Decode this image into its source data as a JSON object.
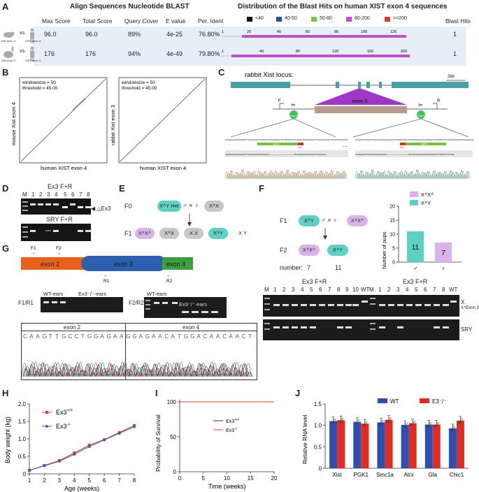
{
  "panels": {
    "A": "A",
    "B": "B",
    "C": "C",
    "D": "D",
    "E": "E",
    "F": "F",
    "G": "G",
    "H": "H",
    "I": "I",
    "J": "J"
  },
  "panelA": {
    "left_title": "Align Sequences Nucleotide BLAST",
    "right_title": "Distribution of the Blast Hits on human XIST exon 4 sequences",
    "columns": [
      "Max Score",
      "Total Score",
      "Query Cover",
      "E value",
      "Per. Ident"
    ],
    "blast_hits_label": "Blast Hits",
    "legend": [
      {
        "label": "<40",
        "color": "#111111"
      },
      {
        "label": "40-50",
        "color": "#2a4fa0"
      },
      {
        "label": "50-80",
        "color": "#7dc242"
      },
      {
        "label": "80-200",
        "color": "#c052c9"
      },
      {
        "label": ">=200",
        "color": "#e03a2f"
      }
    ],
    "rows": [
      {
        "vs": "vs.",
        "left_label": "Xist exon 4",
        "right_label": "XIST exon 4",
        "max": "96.0",
        "total": "96.0",
        "cover": "89%",
        "evalue": "4e-25",
        "ident": "76.80%",
        "hits": "1",
        "ticks": [
          "1",
          "20",
          "40",
          "60",
          "80",
          "100",
          "120"
        ]
      },
      {
        "vs": "vs.",
        "left_label": "Xist exon 3",
        "right_label": "XIST exon 4",
        "max": "176",
        "total": "176",
        "cover": "94%",
        "evalue": "4e-49",
        "ident": "79.80%",
        "hits": "1",
        "ticks": [
          "1",
          "40",
          "80",
          "120",
          "160",
          "200"
        ]
      }
    ]
  },
  "panelB": {
    "plot1": {
      "info1": "windowsize = 50",
      "info2": "threshold = 45.00",
      "ylabel": "mouse Xist exon 4",
      "xlabel": "human XIST exon 4"
    },
    "plot2": {
      "info1": "windowsize = 50",
      "info2": "threshold = 45.00",
      "ylabel": "rabbit Xist exon 3",
      "xlabel": "human XIST exon 4"
    }
  },
  "panelC": {
    "title": "rabbit Xist locus:",
    "scale": "2kb",
    "exon": "exon 3",
    "cas9": "Cas 9",
    "F": "F",
    "R": "R",
    "sgRNA": "sgRNA",
    "pam": "PAM",
    "ellipsis": "...",
    "seq_left": "GGGGGGAAAAAGAAGTTTGGAGATCGCCAGACTTGGAGGACTGTTAGGTGTTTTAAAGCAAAAAAAAATTTTCCAGGGAACTTGAATTTGGAACC",
    "seq_right": "TGGGACTCTTGCTTGGCAAAAGGAGAGCTTTCCTAGTAAGTCTAGTAGGAGCAAATTAGCTTCTTATGTTTTTTGGAGGAGACCTAAATAAGG",
    "seq_left_mut": "GGGGGGAAAAAGAAGTTTGGAGATCGCCAGACT----------------------------------------TTCCAGGGAACTTGAATTTGGAACC",
    "seq_right_mut": "TGGGACTCTTGCTTGGCAAAAGGA----------------------------------GTCTAGTAGGAGCAAATTAGCTTCTTATGTTTTTTGG"
  },
  "panelD": {
    "title1": "Ex3 F+R",
    "title2": "SRY  F+R",
    "M": "M",
    "lanes": [
      "1",
      "2",
      "3",
      "4",
      "5",
      "6",
      "7",
      "8"
    ],
    "arrow_label": "◀ △Ex3"
  },
  "panelE": {
    "F0": "F0",
    "F1": "F1",
    "cross": "♂ × ♀",
    "f0": [
      "XᐞY Het",
      "XᐞX"
    ],
    "f1": [
      "XᐞXᐞ",
      "XᐞX",
      "X X",
      "XᐞY",
      "X Y"
    ]
  },
  "panelF": {
    "F1": "F1",
    "F2": "F2",
    "cross": "♂ × ♀",
    "number_label": "number:",
    "f1": [
      "XᐞY",
      "XᐞXᐞ"
    ],
    "f2": [
      "XᐞXᐞ",
      "XᐞY"
    ],
    "counts": [
      "7",
      "11"
    ],
    "legend": [
      "XᐞXᐞ",
      "XᐞY"
    ],
    "ylabel": "Number of pups",
    "gel_title1": "Ex3 F+R",
    "gel_title2": "Ex3 F+R",
    "lanes1": [
      "M",
      "1",
      "2",
      "3",
      "4",
      "5",
      "6",
      "7",
      "8",
      "9",
      "10",
      "WT"
    ],
    "lanes2": [
      "M",
      "1",
      "2",
      "3",
      "4",
      "5",
      "6",
      "7",
      "8",
      "WT"
    ],
    "side_labels": [
      "X",
      "XᐞExon 3",
      "SRY"
    ]
  },
  "panelG": {
    "exons": [
      "exon 2",
      "exon 3",
      "exon 4"
    ],
    "primers": [
      "F1",
      "F2",
      "R1",
      "R2"
    ],
    "gel1_label": "F1/R1",
    "gel2_label": "F2/R2",
    "wt": "WT-ears",
    "ko": "Ex3⁻/⁻-ears",
    "wt2": "WT-ears",
    "ko2": "Ex3⁻/⁻-ears",
    "chrom_left": "exon 2",
    "chrom_right": "exon 4",
    "bases": [
      "C",
      "A",
      "A",
      "G",
      "T",
      "T",
      "G",
      "C",
      "C",
      "T",
      "G",
      "G",
      "A",
      "G",
      "A",
      "A",
      "G",
      "G",
      "A",
      "G",
      "A",
      "A",
      "C",
      "A",
      "T",
      "G",
      "G",
      "A",
      "C",
      "A",
      "A",
      "C",
      "A",
      "A",
      "C",
      "T"
    ]
  },
  "chart_data": [
    {
      "panel": "F",
      "type": "bar",
      "title": "",
      "ylabel": "Number of pups",
      "ylim": [
        0,
        20
      ],
      "yticks": [
        "0",
        "5",
        "10",
        "15",
        "20"
      ],
      "categories": [
        "♂",
        "♀"
      ],
      "values": [
        11,
        7
      ],
      "colors": [
        "#5fd1c4",
        "#d9b4ec"
      ]
    },
    {
      "panel": "H",
      "type": "line",
      "xlabel": "Age  (weeks)",
      "ylabel": "Body weight (kg)",
      "ylim": [
        0,
        2.0
      ],
      "xticks": [
        "1",
        "2",
        "3",
        "4",
        "5",
        "6",
        "7",
        "8"
      ],
      "yticks": [
        "0",
        "0.5",
        "1.0",
        "1.5",
        "2.0"
      ],
      "x": [
        1,
        2,
        3,
        4,
        5,
        6,
        7,
        8
      ],
      "series": [
        {
          "name": "Ex3+/+",
          "sup": "+/+",
          "values": [
            0.1,
            0.24,
            0.38,
            0.6,
            0.82,
            0.98,
            1.18,
            1.38
          ],
          "color": "#e03a2f"
        },
        {
          "name": "Ex3-/-",
          "sup": "-/-",
          "values": [
            0.1,
            0.23,
            0.36,
            0.56,
            0.78,
            0.97,
            1.16,
            1.35
          ],
          "color": "#3a5fb5"
        }
      ]
    },
    {
      "panel": "I",
      "type": "line",
      "xlabel": "Time  (weeks)",
      "ylabel": "Probability of Survival",
      "xlim": [
        0,
        20
      ],
      "ylim": [
        0,
        100
      ],
      "xticks": [
        "0",
        "5",
        "10",
        "15",
        "20"
      ],
      "yticks": [
        "0",
        "50",
        "100"
      ],
      "series": [
        {
          "name": "Ex3+/+",
          "sup": "+/+",
          "x": [
            0,
            20
          ],
          "values": [
            100,
            100
          ],
          "color": "#333333"
        },
        {
          "name": "Ex3-/-",
          "sup": "-/-",
          "x": [
            0,
            20
          ],
          "values": [
            100,
            100
          ],
          "color": "#e03a2f"
        }
      ]
    },
    {
      "panel": "J",
      "type": "bar",
      "ylabel": "Relative RNA level",
      "ylim": [
        0,
        1.5
      ],
      "yticks": [
        "0",
        "0.5",
        "1.0",
        "1.5"
      ],
      "categories": [
        "Xist",
        "PGK1",
        "Smc1a",
        "Atrx",
        "Gla",
        "Chic1"
      ],
      "series": [
        {
          "name": "WT",
          "values": [
            1.1,
            1.08,
            1.07,
            1.01,
            1.02,
            0.93
          ],
          "color": "#2f4fb0"
        },
        {
          "name": "E3⁻/⁻",
          "values": [
            1.12,
            1.04,
            1.13,
            1.05,
            1.02,
            1.11
          ],
          "color": "#e02b20"
        }
      ]
    }
  ]
}
